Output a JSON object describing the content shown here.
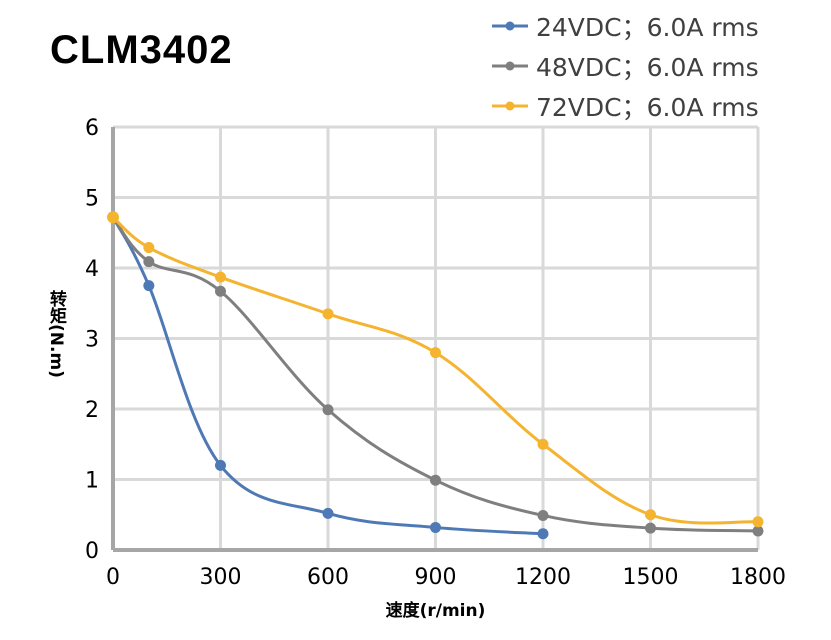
{
  "chart_data": {
    "type": "line",
    "title": "CLM3402",
    "xlabel": "速度(r/min)",
    "ylabel": "转矩(N.m)",
    "xlim": [
      0,
      1800
    ],
    "ylim": [
      0,
      6
    ],
    "xticks": [
      "0",
      "300",
      "600",
      "900",
      "1200",
      "1500",
      "1800"
    ],
    "yticks": [
      "0",
      "1",
      "2",
      "3",
      "4",
      "5",
      "6"
    ],
    "grid": true,
    "legend": "top-right",
    "series": [
      {
        "name": "24VDC；6.0A rms",
        "color": "#4f79b5",
        "x": [
          0,
          100,
          300,
          600,
          900,
          1200
        ],
        "y": [
          4.72,
          3.75,
          1.2,
          0.52,
          0.32,
          0.23
        ]
      },
      {
        "name": "48VDC；6.0A rms",
        "color": "#7f7f7f",
        "x": [
          0,
          100,
          300,
          600,
          900,
          1200,
          1500,
          1800
        ],
        "y": [
          4.72,
          4.09,
          3.67,
          1.99,
          0.99,
          0.49,
          0.31,
          0.27
        ]
      },
      {
        "name": "72VDC；6.0A rms",
        "color": "#f4b430",
        "x": [
          0,
          100,
          300,
          600,
          900,
          1200,
          1500,
          1800
        ],
        "y": [
          4.72,
          4.29,
          3.87,
          3.35,
          2.8,
          1.5,
          0.5,
          0.4
        ]
      }
    ]
  }
}
